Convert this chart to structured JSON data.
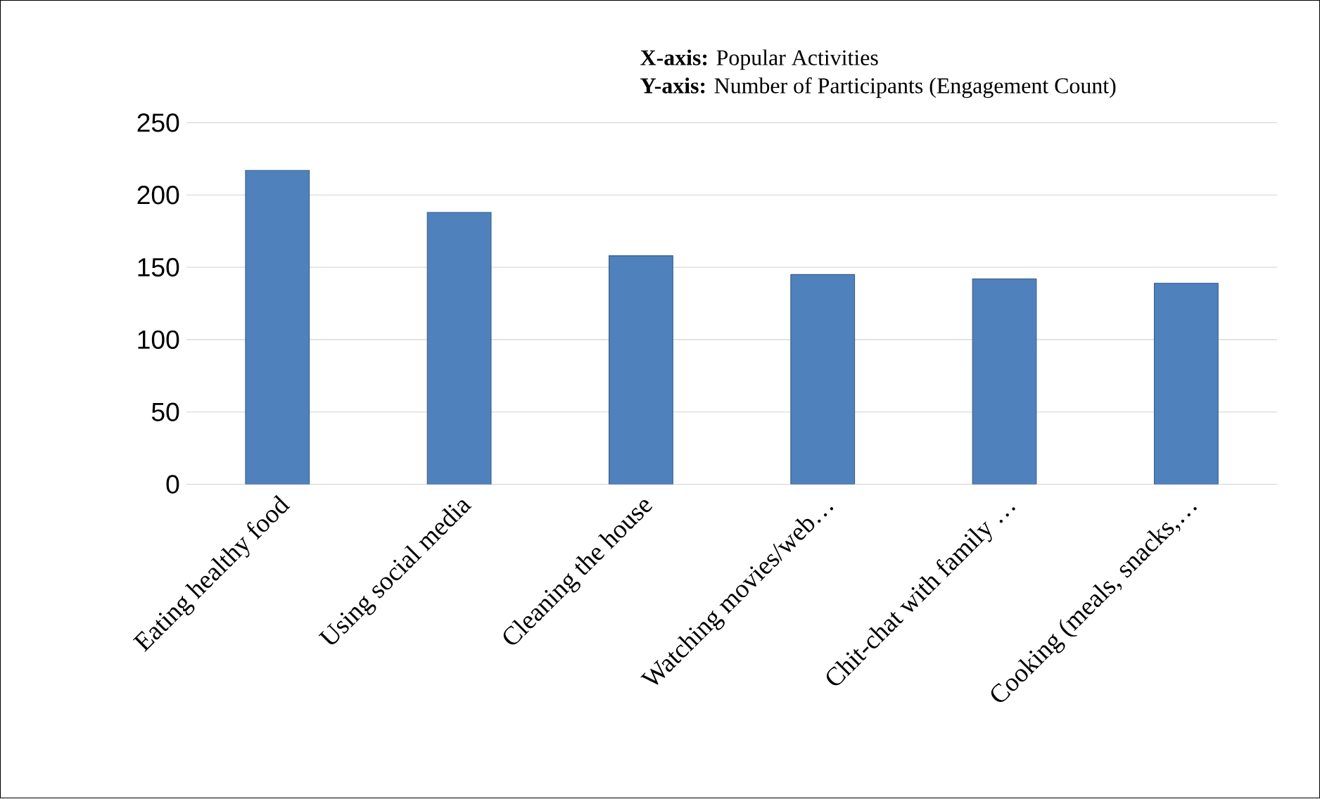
{
  "chart_data": {
    "type": "bar",
    "annotations": [
      "**X-axis:** Popular Activities",
      "**Y-axis:** Number of Participants (Engagement Count)"
    ],
    "categories": [
      "Eating healthy food",
      "Using social media",
      "Cleaning the house",
      "Watching movies/web…",
      "Chit-chat with family …",
      "Cooking (meals, snacks,…"
    ],
    "values": [
      217,
      188,
      158,
      145,
      142,
      139
    ],
    "color": "#4f81bd",
    "ylim": [
      0,
      250
    ],
    "yticks": [
      0,
      50,
      100,
      150,
      200,
      250
    ],
    "grid": "y"
  }
}
